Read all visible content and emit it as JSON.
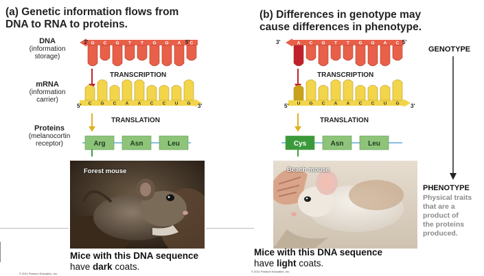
{
  "panel_a": {
    "title_line1": "(a) Genetic information flows from",
    "title_line2": "DNA to RNA to proteins.",
    "dna_label": "DNA",
    "dna_sub1": "(information",
    "dna_sub2": "storage)",
    "mrna_label": "mRNA",
    "mrna_sub1": "(information",
    "mrna_sub2": "carrier)",
    "protein_label": "Proteins",
    "protein_sub1": "(melanocortin",
    "protein_sub2": "receptor)",
    "dna_bases": [
      "G",
      "C",
      "G",
      "T",
      "T",
      "G",
      "G",
      "A",
      "C"
    ],
    "mrna_bases": [
      "C",
      "G",
      "C",
      "A",
      "A",
      "C",
      "C",
      "U",
      "G"
    ],
    "amino_acids": [
      "Arg",
      "Asn",
      "Leu"
    ],
    "dna_end_left": "3'",
    "dna_end_right": "5'",
    "mrna_end_left": "5'",
    "mrna_end_right": "3'",
    "transcription": "TRANSCRIPTION",
    "translation": "TRANSLATION",
    "photo_label": "Forest mouse",
    "caption_line1": "Mice with this DNA sequence",
    "caption_line2_pre": "have ",
    "caption_line2_bold": "dark",
    "caption_line2_post": " coats.",
    "copyright": "© 2011 Pearson Education, Inc."
  },
  "panel_b": {
    "title_line1": "(b) Differences in genotype may",
    "title_line2": "cause differences in phenotype.",
    "dna_bases": [
      "A",
      "C",
      "G",
      "T",
      "T",
      "G",
      "G",
      "A",
      "C"
    ],
    "mrna_bases": [
      "U",
      "G",
      "C",
      "A",
      "A",
      "C",
      "C",
      "U",
      "G"
    ],
    "amino_acids": [
      "Cys",
      "Asn",
      "Leu"
    ],
    "dna_end_left": "3'",
    "dna_end_right": "5'",
    "mrna_end_left": "5'",
    "mrna_end_right": "3'",
    "transcription": "TRANSCRIPTION",
    "translation": "TRANSLATION",
    "photo_label": "Beach mouse",
    "caption_line1": "Mice with this DNA sequence",
    "caption_line2_pre": "have ",
    "caption_line2_bold": "light",
    "caption_line2_post": " coats.",
    "copyright": "© 2011 Pearson Education, Inc."
  },
  "right_side": {
    "genotype": "GENOTYPE",
    "phenotype": "PHENOTYPE",
    "phenotype_desc": [
      "Physical traits",
      "that are a",
      "product of",
      "the proteins",
      "produced."
    ]
  },
  "colors": {
    "dna_red": "#e8604a",
    "dna_dark": "#c0202a",
    "mrna_yellow": "#f2d54a",
    "mrna_dark": "#c9a21a",
    "protein_green": "#8dc47a",
    "protein_dark": "#3a9a3a",
    "arrow_red": "#c0202a",
    "arrow_yellow": "#e0b020",
    "arrow_green": "#3aa040"
  }
}
